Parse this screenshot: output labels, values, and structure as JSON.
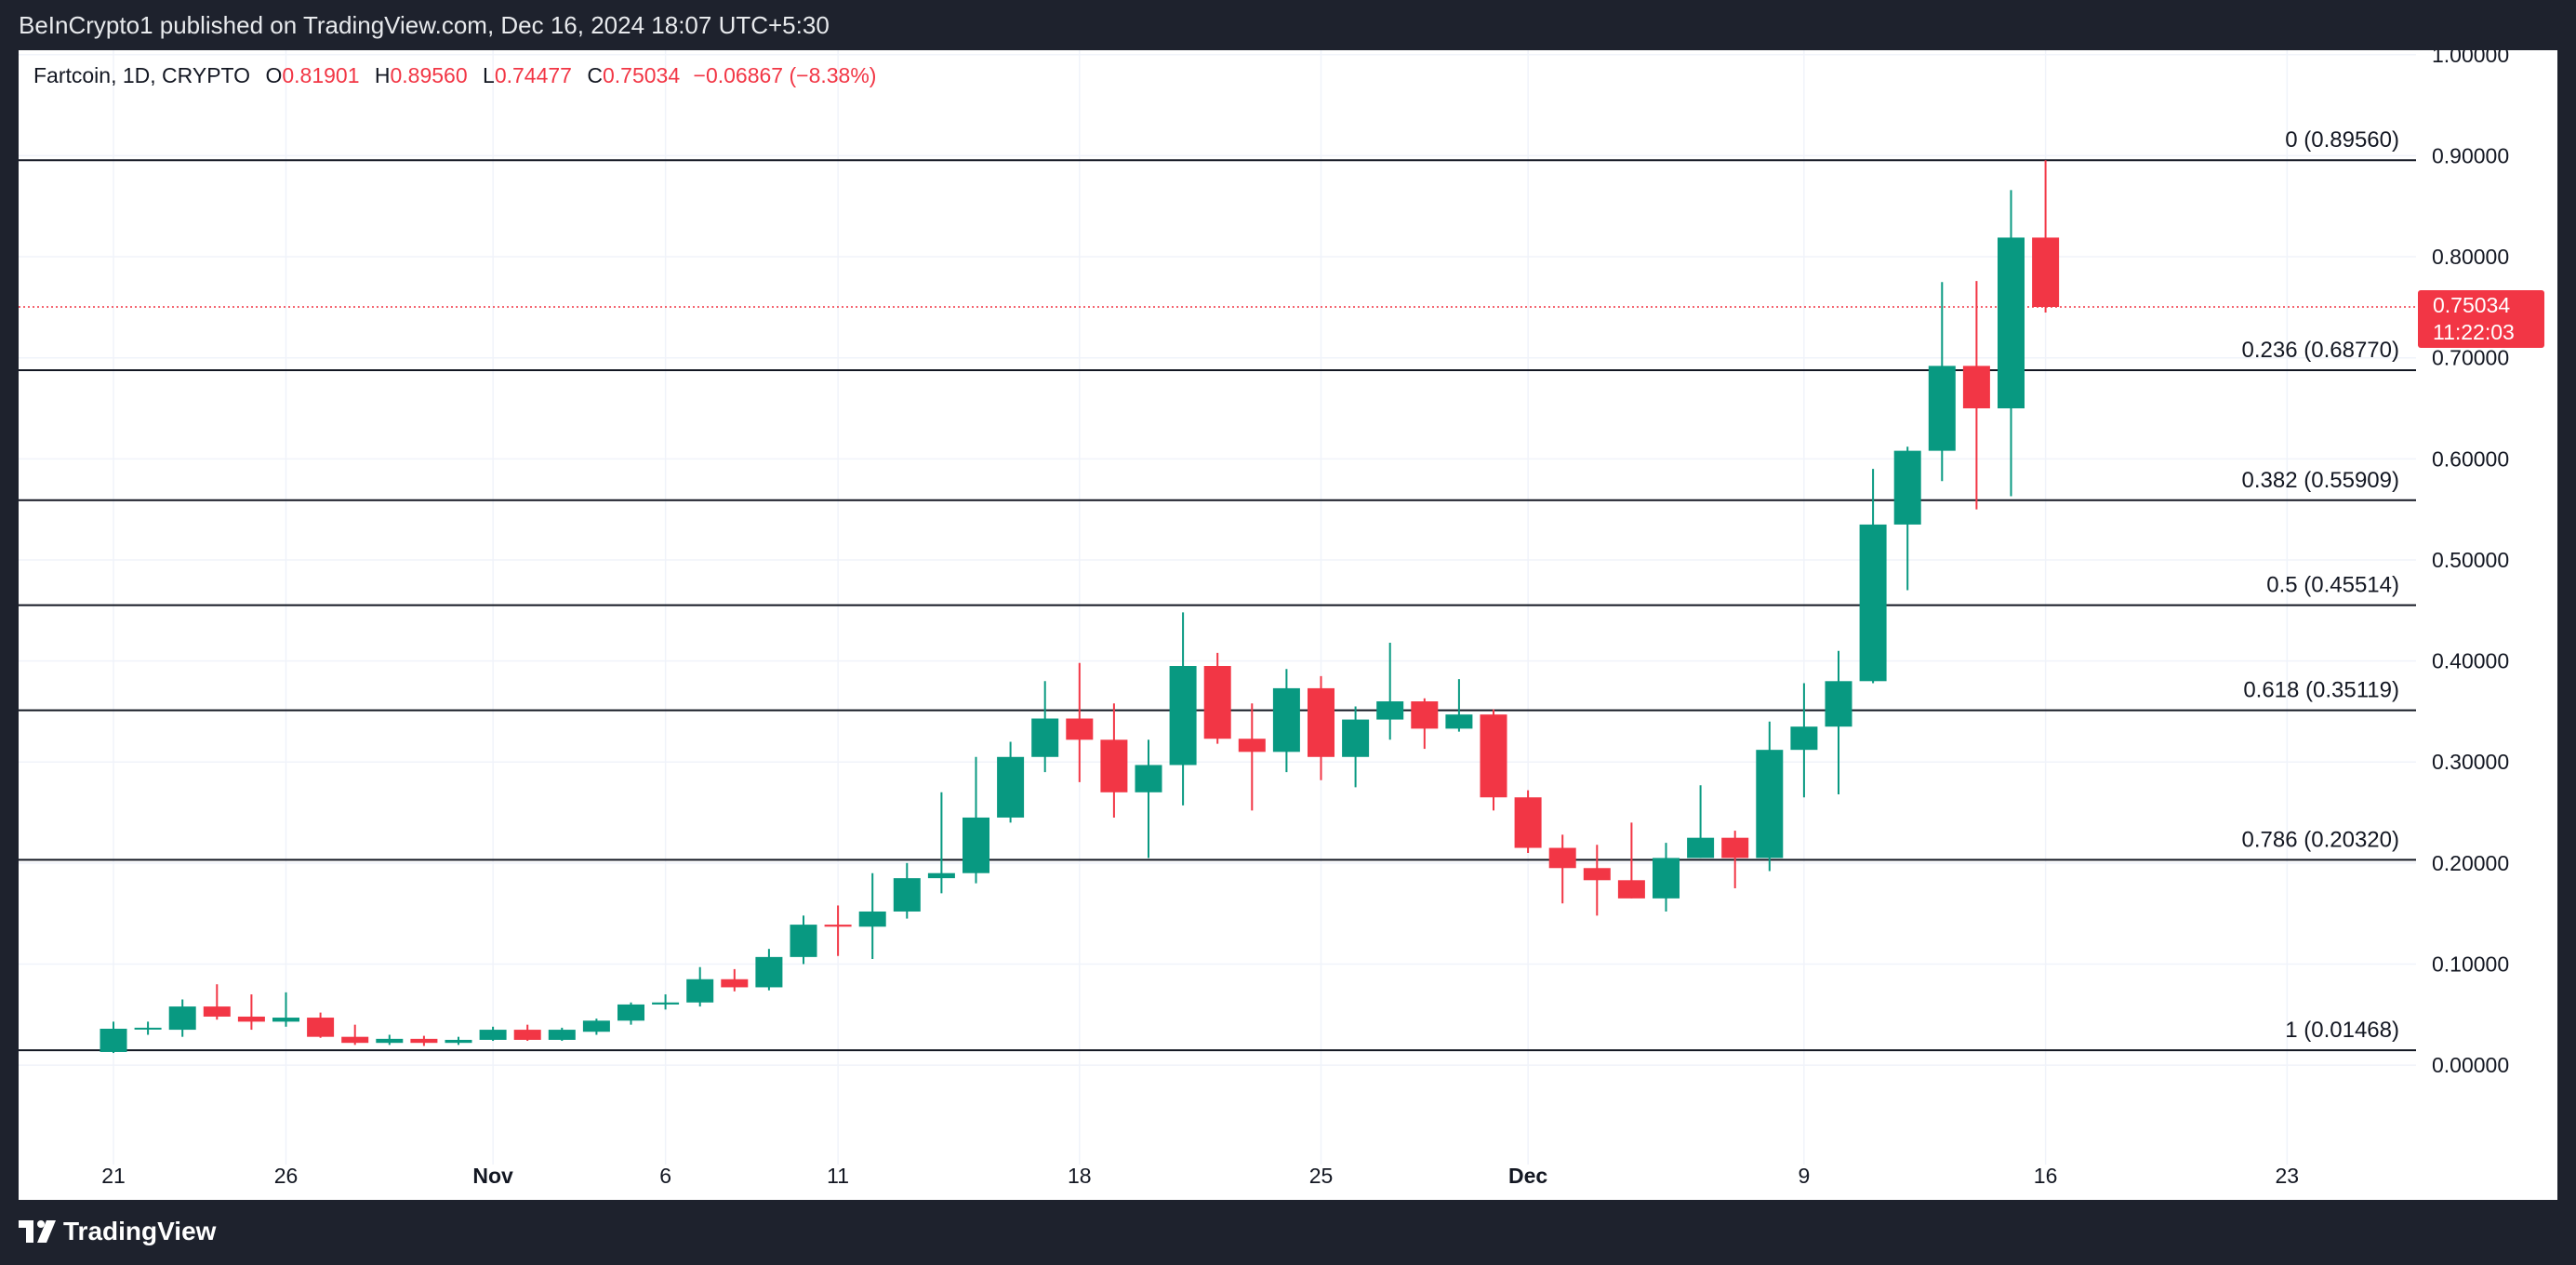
{
  "header": {
    "published": "BeInCrypto1 published on TradingView.com, Dec 16, 2024 18:07 UTC+5:30"
  },
  "legend": {
    "symbol": "Fartcoin, 1D, CRYPTO",
    "open_label": "O",
    "open": "0.81901",
    "high_label": "H",
    "high": "0.89560",
    "low_label": "L",
    "low": "0.74477",
    "close_label": "C",
    "close": "0.75034",
    "change": "−0.06867 (−8.38%)"
  },
  "price_tag": {
    "price": "0.75034",
    "countdown": "11:22:03"
  },
  "footer": {
    "brand": "TradingView"
  },
  "colors": {
    "up": "#089981",
    "down": "#f23645",
    "grid": "#f0f3fa",
    "text": "#131722",
    "tag": "#f23645"
  },
  "chart_data": {
    "type": "candlestick",
    "title": "Fartcoin, 1D, CRYPTO",
    "ylim": [
      -0.08,
      1.0
    ],
    "y_ticks": [
      "1.00000",
      "0.90000",
      "0.80000",
      "0.70000",
      "0.60000",
      "0.50000",
      "0.40000",
      "0.30000",
      "0.20000",
      "0.10000",
      "0.00000"
    ],
    "y_tick_values": [
      1.0,
      0.9,
      0.8,
      0.7,
      0.6,
      0.5,
      0.4,
      0.3,
      0.2,
      0.1,
      0.0
    ],
    "x_ticks": [
      {
        "label": "21",
        "index": 0,
        "bold": false
      },
      {
        "label": "26",
        "index": 5,
        "bold": false
      },
      {
        "label": "Nov",
        "index": 11,
        "bold": true
      },
      {
        "label": "6",
        "index": 16,
        "bold": false
      },
      {
        "label": "11",
        "index": 21,
        "bold": false
      },
      {
        "label": "18",
        "index": 28,
        "bold": false
      },
      {
        "label": "25",
        "index": 35,
        "bold": false
      },
      {
        "label": "Dec",
        "index": 41,
        "bold": true
      },
      {
        "label": "9",
        "index": 49,
        "bold": false
      },
      {
        "label": "16",
        "index": 56,
        "bold": false
      },
      {
        "label": "23",
        "index": 63,
        "bold": false
      }
    ],
    "first_date": "Oct 21, 2024",
    "days_visible": 67,
    "last_price": 0.75034,
    "fib_levels": [
      {
        "ratio": "0",
        "price": 0.8956,
        "label": "0 (0.89560)"
      },
      {
        "ratio": "0.236",
        "price": 0.6877,
        "label": "0.236 (0.68770)"
      },
      {
        "ratio": "0.382",
        "price": 0.55909,
        "label": "0.382 (0.55909)"
      },
      {
        "ratio": "0.5",
        "price": 0.45514,
        "label": "0.5 (0.45514)"
      },
      {
        "ratio": "0.618",
        "price": 0.35119,
        "label": "0.618 (0.35119)"
      },
      {
        "ratio": "0.786",
        "price": 0.2032,
        "label": "0.786 (0.20320)"
      },
      {
        "ratio": "1",
        "price": 0.01468,
        "label": "1 (0.01468)"
      }
    ],
    "candles": [
      {
        "o": 0.013,
        "h": 0.043,
        "l": 0.012,
        "c": 0.036
      },
      {
        "o": 0.036,
        "h": 0.043,
        "l": 0.03,
        "c": 0.037
      },
      {
        "o": 0.035,
        "h": 0.065,
        "l": 0.028,
        "c": 0.058
      },
      {
        "o": 0.058,
        "h": 0.08,
        "l": 0.045,
        "c": 0.048
      },
      {
        "o": 0.048,
        "h": 0.07,
        "l": 0.035,
        "c": 0.043
      },
      {
        "o": 0.043,
        "h": 0.072,
        "l": 0.038,
        "c": 0.047
      },
      {
        "o": 0.047,
        "h": 0.052,
        "l": 0.027,
        "c": 0.028
      },
      {
        "o": 0.028,
        "h": 0.04,
        "l": 0.02,
        "c": 0.022
      },
      {
        "o": 0.022,
        "h": 0.03,
        "l": 0.02,
        "c": 0.026
      },
      {
        "o": 0.026,
        "h": 0.029,
        "l": 0.019,
        "c": 0.022
      },
      {
        "o": 0.022,
        "h": 0.028,
        "l": 0.02,
        "c": 0.025
      },
      {
        "o": 0.025,
        "h": 0.038,
        "l": 0.024,
        "c": 0.035
      },
      {
        "o": 0.035,
        "h": 0.04,
        "l": 0.024,
        "c": 0.025
      },
      {
        "o": 0.025,
        "h": 0.037,
        "l": 0.024,
        "c": 0.035
      },
      {
        "o": 0.033,
        "h": 0.046,
        "l": 0.03,
        "c": 0.044
      },
      {
        "o": 0.044,
        "h": 0.062,
        "l": 0.04,
        "c": 0.06
      },
      {
        "o": 0.06,
        "h": 0.07,
        "l": 0.055,
        "c": 0.062
      },
      {
        "o": 0.062,
        "h": 0.097,
        "l": 0.058,
        "c": 0.085
      },
      {
        "o": 0.085,
        "h": 0.095,
        "l": 0.073,
        "c": 0.077
      },
      {
        "o": 0.077,
        "h": 0.115,
        "l": 0.074,
        "c": 0.107
      },
      {
        "o": 0.107,
        "h": 0.148,
        "l": 0.1,
        "c": 0.139
      },
      {
        "o": 0.139,
        "h": 0.158,
        "l": 0.108,
        "c": 0.137
      },
      {
        "o": 0.137,
        "h": 0.19,
        "l": 0.105,
        "c": 0.152
      },
      {
        "o": 0.152,
        "h": 0.2,
        "l": 0.145,
        "c": 0.185
      },
      {
        "o": 0.185,
        "h": 0.27,
        "l": 0.17,
        "c": 0.19
      },
      {
        "o": 0.19,
        "h": 0.305,
        "l": 0.18,
        "c": 0.245
      },
      {
        "o": 0.245,
        "h": 0.32,
        "l": 0.24,
        "c": 0.305
      },
      {
        "o": 0.305,
        "h": 0.38,
        "l": 0.29,
        "c": 0.343
      },
      {
        "o": 0.343,
        "h": 0.398,
        "l": 0.28,
        "c": 0.322
      },
      {
        "o": 0.322,
        "h": 0.358,
        "l": 0.245,
        "c": 0.27
      },
      {
        "o": 0.27,
        "h": 0.322,
        "l": 0.205,
        "c": 0.297
      },
      {
        "o": 0.297,
        "h": 0.448,
        "l": 0.257,
        "c": 0.395
      },
      {
        "o": 0.395,
        "h": 0.408,
        "l": 0.318,
        "c": 0.323
      },
      {
        "o": 0.323,
        "h": 0.358,
        "l": 0.252,
        "c": 0.31
      },
      {
        "o": 0.31,
        "h": 0.392,
        "l": 0.29,
        "c": 0.373
      },
      {
        "o": 0.373,
        "h": 0.385,
        "l": 0.282,
        "c": 0.305
      },
      {
        "o": 0.305,
        "h": 0.355,
        "l": 0.275,
        "c": 0.342
      },
      {
        "o": 0.342,
        "h": 0.418,
        "l": 0.322,
        "c": 0.36
      },
      {
        "o": 0.36,
        "h": 0.363,
        "l": 0.313,
        "c": 0.333
      },
      {
        "o": 0.333,
        "h": 0.382,
        "l": 0.33,
        "c": 0.347
      },
      {
        "o": 0.347,
        "h": 0.352,
        "l": 0.252,
        "c": 0.265
      },
      {
        "o": 0.265,
        "h": 0.272,
        "l": 0.21,
        "c": 0.215
      },
      {
        "o": 0.215,
        "h": 0.228,
        "l": 0.16,
        "c": 0.195
      },
      {
        "o": 0.195,
        "h": 0.218,
        "l": 0.148,
        "c": 0.183
      },
      {
        "o": 0.183,
        "h": 0.24,
        "l": 0.165,
        "c": 0.165
      },
      {
        "o": 0.165,
        "h": 0.22,
        "l": 0.152,
        "c": 0.205
      },
      {
        "o": 0.205,
        "h": 0.277,
        "l": 0.205,
        "c": 0.225
      },
      {
        "o": 0.225,
        "h": 0.232,
        "l": 0.175,
        "c": 0.205
      },
      {
        "o": 0.205,
        "h": 0.34,
        "l": 0.192,
        "c": 0.312
      },
      {
        "o": 0.312,
        "h": 0.378,
        "l": 0.265,
        "c": 0.335
      },
      {
        "o": 0.335,
        "h": 0.41,
        "l": 0.268,
        "c": 0.38
      },
      {
        "o": 0.38,
        "h": 0.59,
        "l": 0.378,
        "c": 0.535
      },
      {
        "o": 0.535,
        "h": 0.612,
        "l": 0.47,
        "c": 0.608
      },
      {
        "o": 0.608,
        "h": 0.775,
        "l": 0.578,
        "c": 0.692
      },
      {
        "o": 0.692,
        "h": 0.776,
        "l": 0.55,
        "c": 0.65
      },
      {
        "o": 0.65,
        "h": 0.866,
        "l": 0.563,
        "c": 0.819
      },
      {
        "o": 0.819,
        "h": 0.8956,
        "l": 0.74477,
        "c": 0.75034
      }
    ]
  }
}
